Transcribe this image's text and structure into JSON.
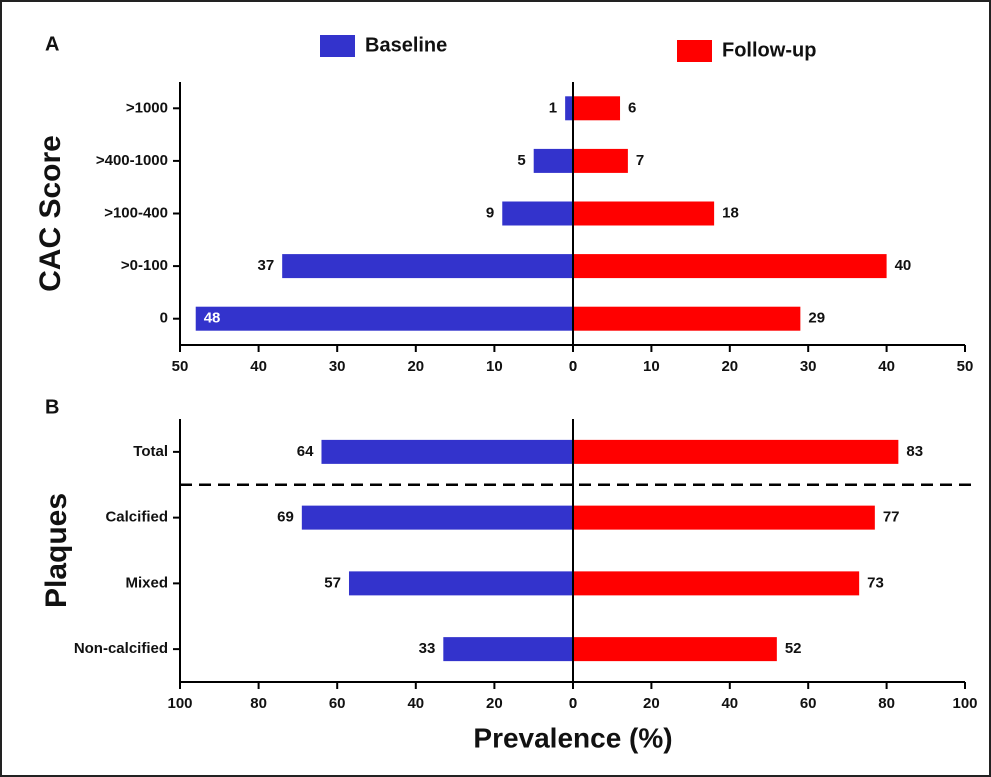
{
  "chart_data": [
    {
      "type": "butterfly",
      "panel_label": "A",
      "y_title": "CAC Score",
      "categories": [
        ">1000",
        ">400-1000",
        ">100-400",
        ">0-100",
        "0"
      ],
      "series": [
        {
          "name": "Baseline",
          "color": "#3333cc",
          "side": "left",
          "values": [
            1,
            5,
            9,
            37,
            48
          ]
        },
        {
          "name": "Follow-up",
          "color": "#ff0000",
          "side": "right",
          "values": [
            6,
            7,
            18,
            40,
            29
          ]
        }
      ],
      "xlim_left": [
        50,
        0
      ],
      "xticks_left": [
        50,
        40,
        30,
        20,
        10,
        0
      ],
      "xlim_right": [
        0,
        50
      ],
      "xticks_right": [
        0,
        10,
        20,
        30,
        40,
        50
      ]
    },
    {
      "type": "butterfly",
      "panel_label": "B",
      "y_title": "Plaques",
      "x_title": "Prevalence (%)",
      "categories": [
        "Total",
        "Calcified",
        "Mixed",
        "Non-calcified"
      ],
      "series": [
        {
          "name": "Baseline",
          "color": "#3333cc",
          "side": "left",
          "values": [
            64,
            69,
            57,
            33
          ]
        },
        {
          "name": "Follow-up",
          "color": "#ff0000",
          "side": "right",
          "values": [
            83,
            77,
            73,
            52
          ]
        }
      ],
      "divider_after_category": 0,
      "xlim_left": [
        100,
        0
      ],
      "xticks_left": [
        100,
        80,
        60,
        40,
        20,
        0
      ],
      "xlim_right": [
        0,
        100
      ],
      "xticks_right": [
        0,
        20,
        40,
        60,
        80,
        100
      ]
    }
  ]
}
